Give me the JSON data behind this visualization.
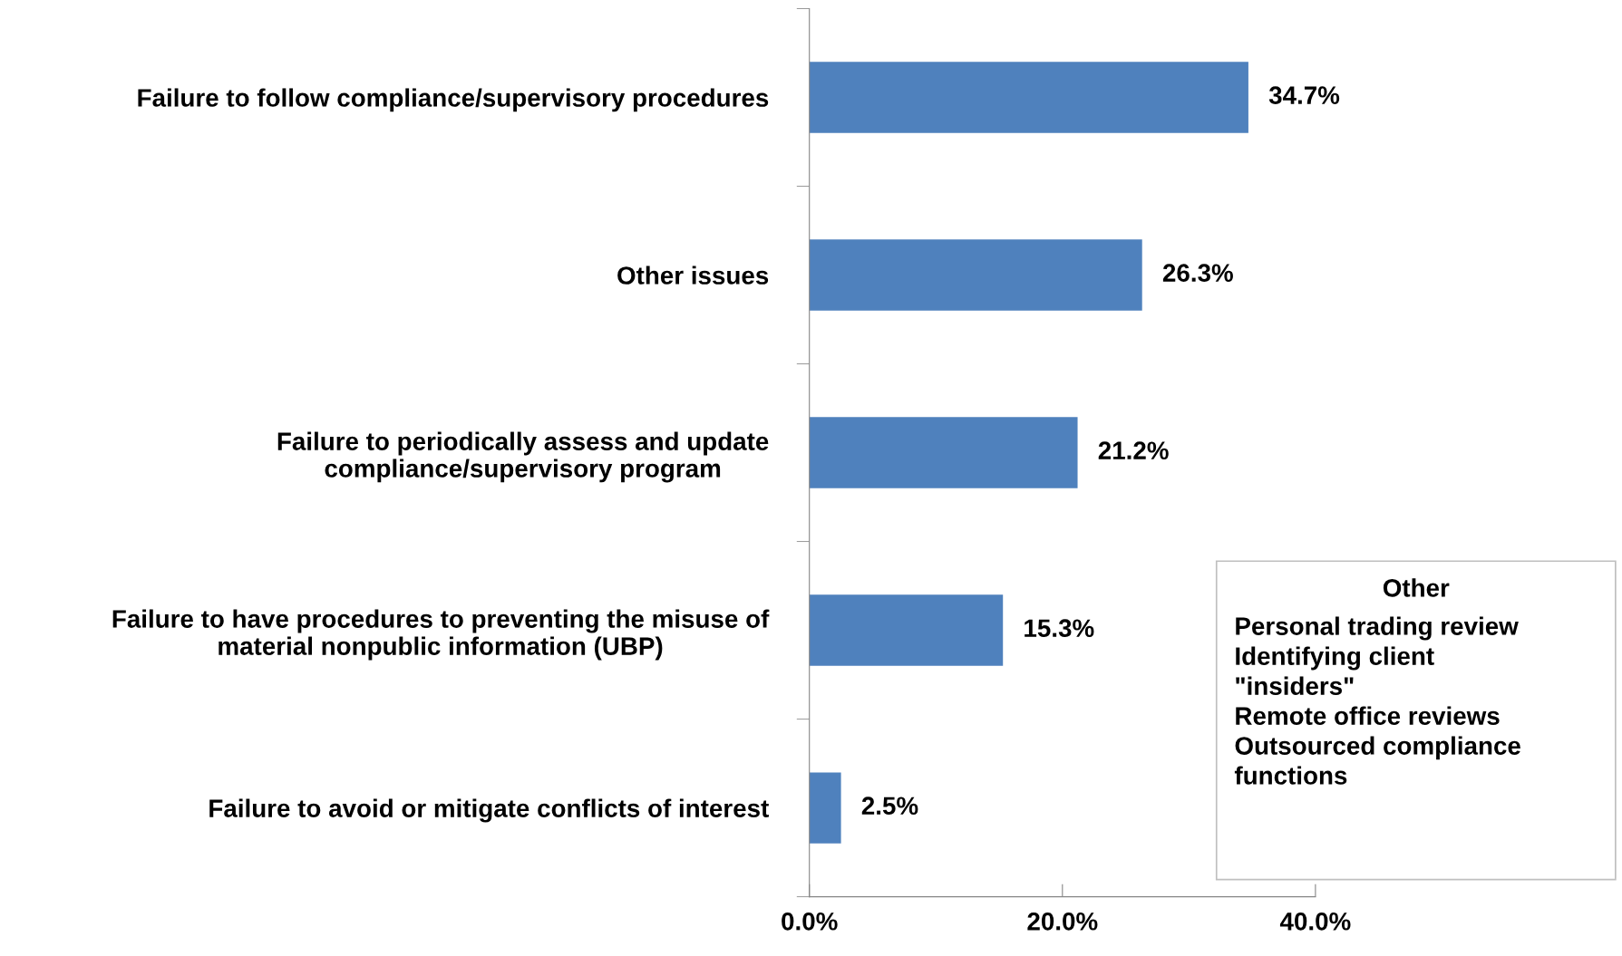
{
  "chart_data": {
    "type": "bar",
    "orientation": "horizontal",
    "categories": [
      "Failure to follow compliance/supervisory procedures",
      "Other issues",
      "Failure to periodically assess and update\ncompliance/supervisory program",
      "Failure to have procedures to preventing the misuse of\nmaterial nonpublic information (UBP)",
      "Failure to avoid or mitigate conflicts of interest"
    ],
    "values": [
      34.7,
      26.3,
      21.2,
      15.3,
      2.5
    ],
    "value_labels": [
      "34.7%",
      "26.3%",
      "21.2%",
      "15.3%",
      "2.5%"
    ],
    "color": "#4f81bd",
    "xlim": [
      0,
      40
    ],
    "xticks": [
      {
        "value": 0,
        "label": "0.0%"
      },
      {
        "value": 20,
        "label": "20.0%"
      },
      {
        "value": 40,
        "label": "40.0%"
      }
    ],
    "grid": false,
    "legend": false,
    "annotations": [
      "Other\nPersonal trading review\nIdentifying client\n\"insiders\"\nRemote office reviews\nOutsourced compliance\nfunctions"
    ]
  }
}
